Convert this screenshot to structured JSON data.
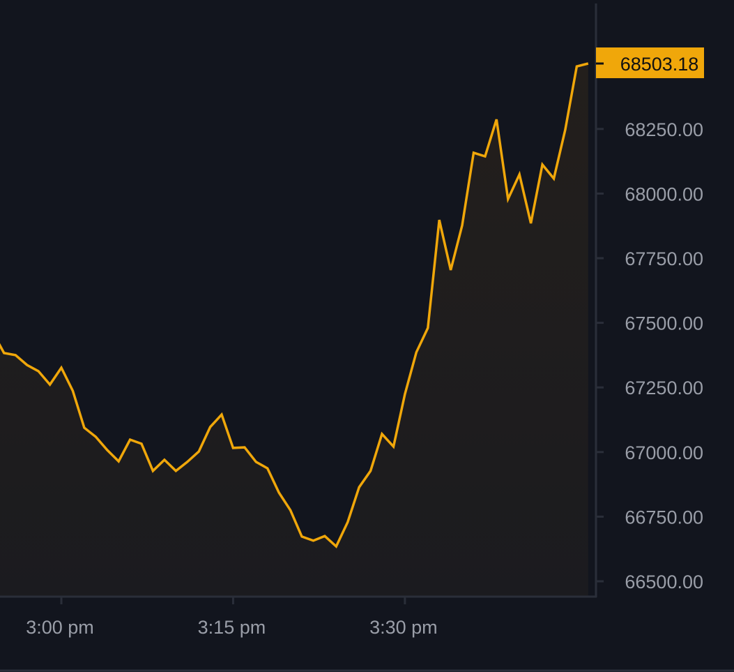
{
  "chart_data": {
    "type": "area",
    "title": "",
    "xlabel": "",
    "ylabel": "",
    "x_ticks": [
      "3:00 pm",
      "3:15 pm",
      "3:30 pm"
    ],
    "y_ticks": [
      "66500.00",
      "66750.00",
      "67000.00",
      "67250.00",
      "67500.00",
      "67750.00",
      "68000.00",
      "68250.00"
    ],
    "ylim": [
      66480,
      68780
    ],
    "grid": false,
    "current_price": "68503.18",
    "colors": {
      "line": "#f0a70a",
      "price_tag": "#f0a70a",
      "background": "#12151e",
      "axis": "#2a2e39",
      "tick_text": "#9a9ea8"
    },
    "series": [
      {
        "x": [
          "2:54 pm",
          "2:55 pm",
          "2:56 pm",
          "2:57 pm",
          "2:58 pm",
          "2:59 pm",
          "3:00 pm",
          "3:01 pm",
          "3:02 pm",
          "3:03 pm",
          "3:04 pm",
          "3:05 pm",
          "3:06 pm",
          "3:07 pm",
          "3:08 pm",
          "3:09 pm",
          "3:10 pm",
          "3:11 pm",
          "3:12 pm",
          "3:13 pm",
          "3:14 pm",
          "3:15 pm",
          "3:16 pm",
          "3:17 pm",
          "3:18 pm",
          "3:19 pm",
          "3:20 pm",
          "3:21 pm",
          "3:22 pm",
          "3:23 pm",
          "3:24 pm",
          "3:25 pm",
          "3:26 pm",
          "3:27 pm",
          "3:28 pm",
          "3:29 pm",
          "3:30 pm",
          "3:31 pm",
          "3:32 pm",
          "3:33 pm",
          "3:34 pm",
          "3:35 pm",
          "3:36 pm",
          "3:37 pm",
          "3:38 pm",
          "3:39 pm",
          "3:40 pm",
          "3:41 pm",
          "3:42 pm",
          "3:43 pm",
          "3:44 pm",
          "3:45 pm",
          "3:46 pm"
        ],
        "y": [
          67464,
          67383,
          67375,
          67337,
          67313,
          67261,
          67326,
          67237,
          67094,
          67059,
          67008,
          66964,
          67048,
          67032,
          66927,
          66970,
          66927,
          66962,
          67002,
          67097,
          67145,
          67016,
          67018,
          66962,
          66937,
          66843,
          66775,
          66673,
          66657,
          66675,
          66635,
          66729,
          66864,
          66927,
          67070,
          67021,
          67224,
          67386,
          67480,
          67898,
          67704,
          67877,
          68158,
          68144,
          68287,
          67979,
          68074,
          67885,
          68112,
          68058,
          68247,
          68492,
          68503.18
        ]
      }
    ]
  }
}
